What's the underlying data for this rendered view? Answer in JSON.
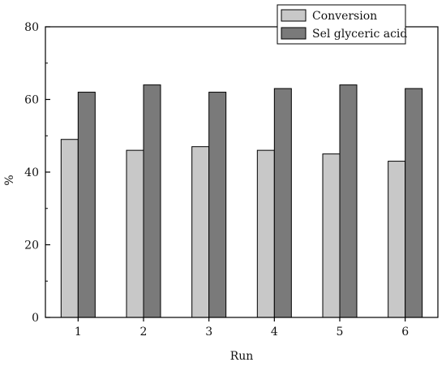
{
  "chart_data": {
    "type": "bar",
    "title": "",
    "xlabel": "Run",
    "ylabel": "%",
    "categories": [
      "1",
      "2",
      "3",
      "4",
      "5",
      "6"
    ],
    "series": [
      {
        "name": "Conversion",
        "values": [
          49,
          46,
          47,
          46,
          45,
          43
        ],
        "color": "#c8c8c8"
      },
      {
        "name": "Sel glyceric acid",
        "values": [
          62,
          64,
          62,
          63,
          64,
          63
        ],
        "color": "#7a7a7a"
      }
    ],
    "ylim": [
      0,
      80
    ],
    "yticks": [
      0,
      20,
      40,
      60,
      80
    ],
    "grid": false,
    "legend_position": "top-right"
  }
}
